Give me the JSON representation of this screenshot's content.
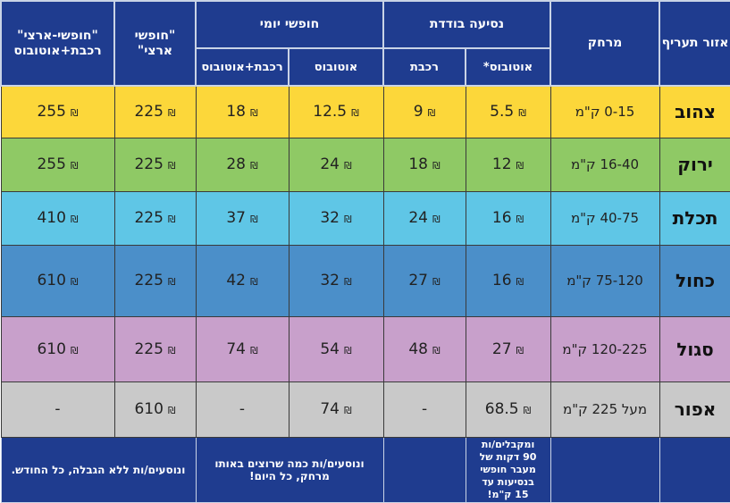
{
  "currency_symbol": "₪",
  "header": {
    "zone": "אזור תעריף",
    "distance": "מרחק",
    "single_ride": "נסיעה בודדת",
    "single_bus": "אוטובוס*",
    "single_rail": "רכבת",
    "daily": "חופשי יומי",
    "daily_bus": "אוטובוס",
    "daily_rail_bus": "רכבת+אוטובוס",
    "national": "\"חופשי ארצי\"",
    "national_rail_bus": "\"חופשי-ארצי\" רכבת+אוטובוס"
  },
  "colors": {
    "header": "#1f3c8f",
    "yellow": "#fcd73a",
    "green": "#8fc965",
    "light_blue": "#5fc6e6",
    "blue": "#4b8fc9",
    "purple": "#c8a0cb",
    "grey": "#c9c9c9"
  },
  "rows": [
    {
      "zone": "צהוב",
      "distance": "0-15 ק\"מ",
      "single_bus": "5.5",
      "single_rail": "9",
      "daily_bus": "12.5",
      "daily_rail_bus": "18",
      "national": "225",
      "national_rail_bus": "255",
      "color": "#fcd73a"
    },
    {
      "zone": "ירוק",
      "distance": "16-40 ק\"מ",
      "single_bus": "12",
      "single_rail": "18",
      "daily_bus": "24",
      "daily_rail_bus": "28",
      "national": "225",
      "national_rail_bus": "255",
      "color": "#8fc965"
    },
    {
      "zone": "תכלת",
      "distance": "40-75 ק\"מ",
      "single_bus": "16",
      "single_rail": "24",
      "daily_bus": "32",
      "daily_rail_bus": "37",
      "national": "225",
      "national_rail_bus": "410",
      "color": "#5fc6e6"
    },
    {
      "zone": "כחול",
      "distance": "75-120 ק\"מ",
      "single_bus": "16",
      "single_rail": "27",
      "daily_bus": "32",
      "daily_rail_bus": "42",
      "national": "225",
      "national_rail_bus": "610",
      "color": "#4b8fc9"
    },
    {
      "zone": "סגול",
      "distance": "120-225 ק\"מ",
      "single_bus": "27",
      "single_rail": "48",
      "daily_bus": "54",
      "daily_rail_bus": "74",
      "national": "225",
      "national_rail_bus": "610",
      "color": "#c8a0cb"
    },
    {
      "zone": "אפור",
      "distance": "מעל 225 ק\"מ",
      "single_bus": "68.5",
      "single_rail": "-",
      "daily_bus": "74",
      "daily_rail_bus": "-",
      "national": "610",
      "national_rail_bus": "-",
      "color": "#c9c9c9"
    }
  ],
  "footer": {
    "single_bus_note": "ומקבלים/ות 90 דקות של מעבר חופשי בנסיעות עד 15 ק\"מ!",
    "daily_note": "ונוסעים/ות כמה שרוצים באותו מרחק, כל היום!",
    "monthly_note": "ונוסעים/ות ללא הגבלה, כל החודש."
  }
}
